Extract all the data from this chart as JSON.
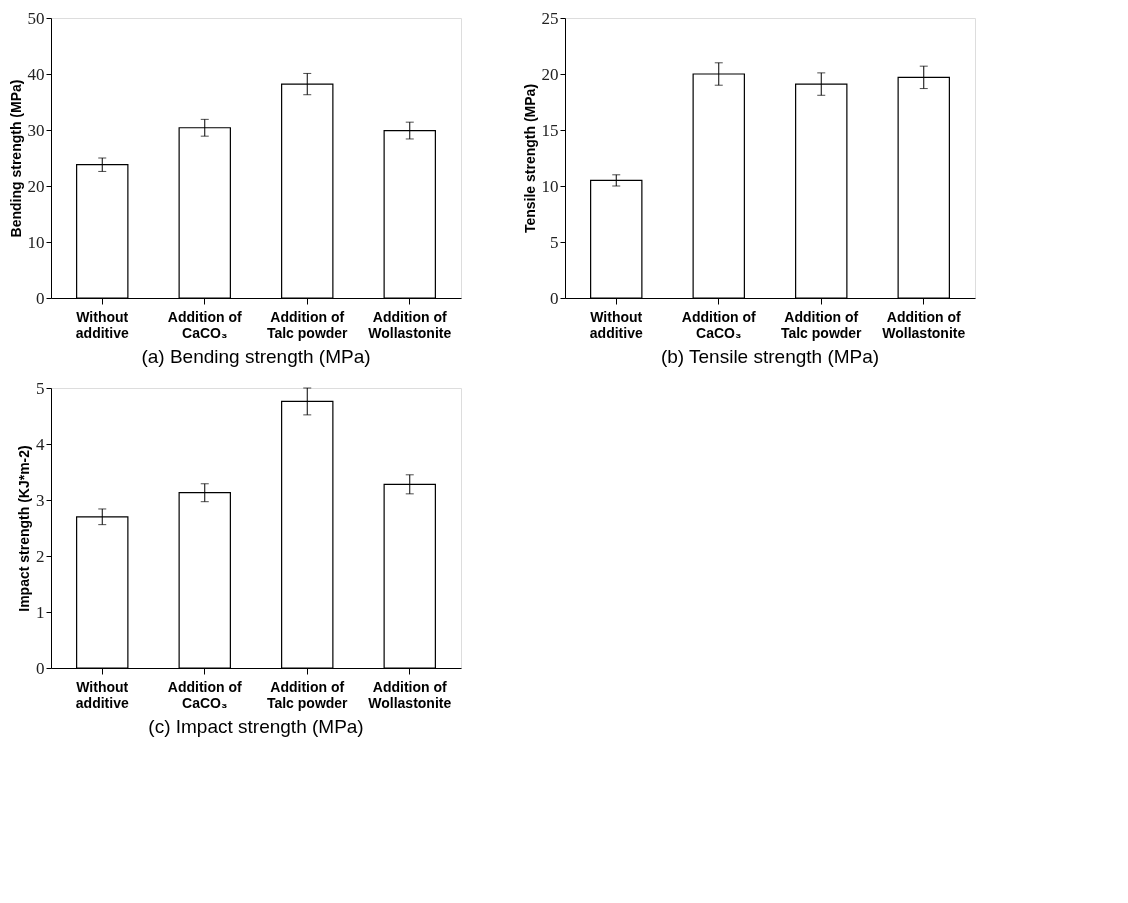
{
  "chart_data": [
    {
      "type": "bar",
      "title": "(a) Bending strength (MPa)",
      "ylabel": "Bending strength (MPa)",
      "categories": [
        "Without\nadditive",
        "Addition of\nCaCO₃",
        "Addition of\nTalc powder",
        "Addition of\nWollastonite"
      ],
      "values": [
        23.8,
        30.4,
        38.2,
        29.9
      ],
      "errors": [
        1.2,
        1.5,
        1.9,
        1.5
      ],
      "color": "#ffffff",
      "ylim": [
        0,
        50
      ],
      "yticks": [
        0,
        10,
        20,
        30,
        40,
        50
      ],
      "grid": false
    },
    {
      "type": "bar",
      "title": "(b) Tensile strength (MPa)",
      "ylabel": "Tensile  strength (MPa)",
      "categories": [
        "Without\nadditive",
        "Addition of\nCaCO₃",
        "Addition of\nTalc powder",
        "Addition of\nWollastonite"
      ],
      "values": [
        10.5,
        20.0,
        19.1,
        19.7
      ],
      "errors": [
        0.5,
        1.0,
        1.0,
        1.0
      ],
      "color": "#ffffff",
      "ylim": [
        0,
        25
      ],
      "yticks": [
        0,
        5,
        10,
        15,
        20,
        25
      ],
      "grid": false
    },
    {
      "type": "bar",
      "title": "(c) Impact strength (MPa)",
      "ylabel": "Impact strength (KJ*m-2)",
      "categories": [
        "Without\nadditive",
        "Addition of\nCaCO₃",
        "Addition of\nTalc powder",
        "Addition of\nWollastonite"
      ],
      "values": [
        2.7,
        3.13,
        4.76,
        3.28
      ],
      "errors": [
        0.14,
        0.16,
        0.24,
        0.17
      ],
      "color": "#ffffff",
      "ylim": [
        0,
        5
      ],
      "yticks": [
        0,
        1,
        2,
        3,
        4,
        5
      ],
      "grid": false
    }
  ]
}
